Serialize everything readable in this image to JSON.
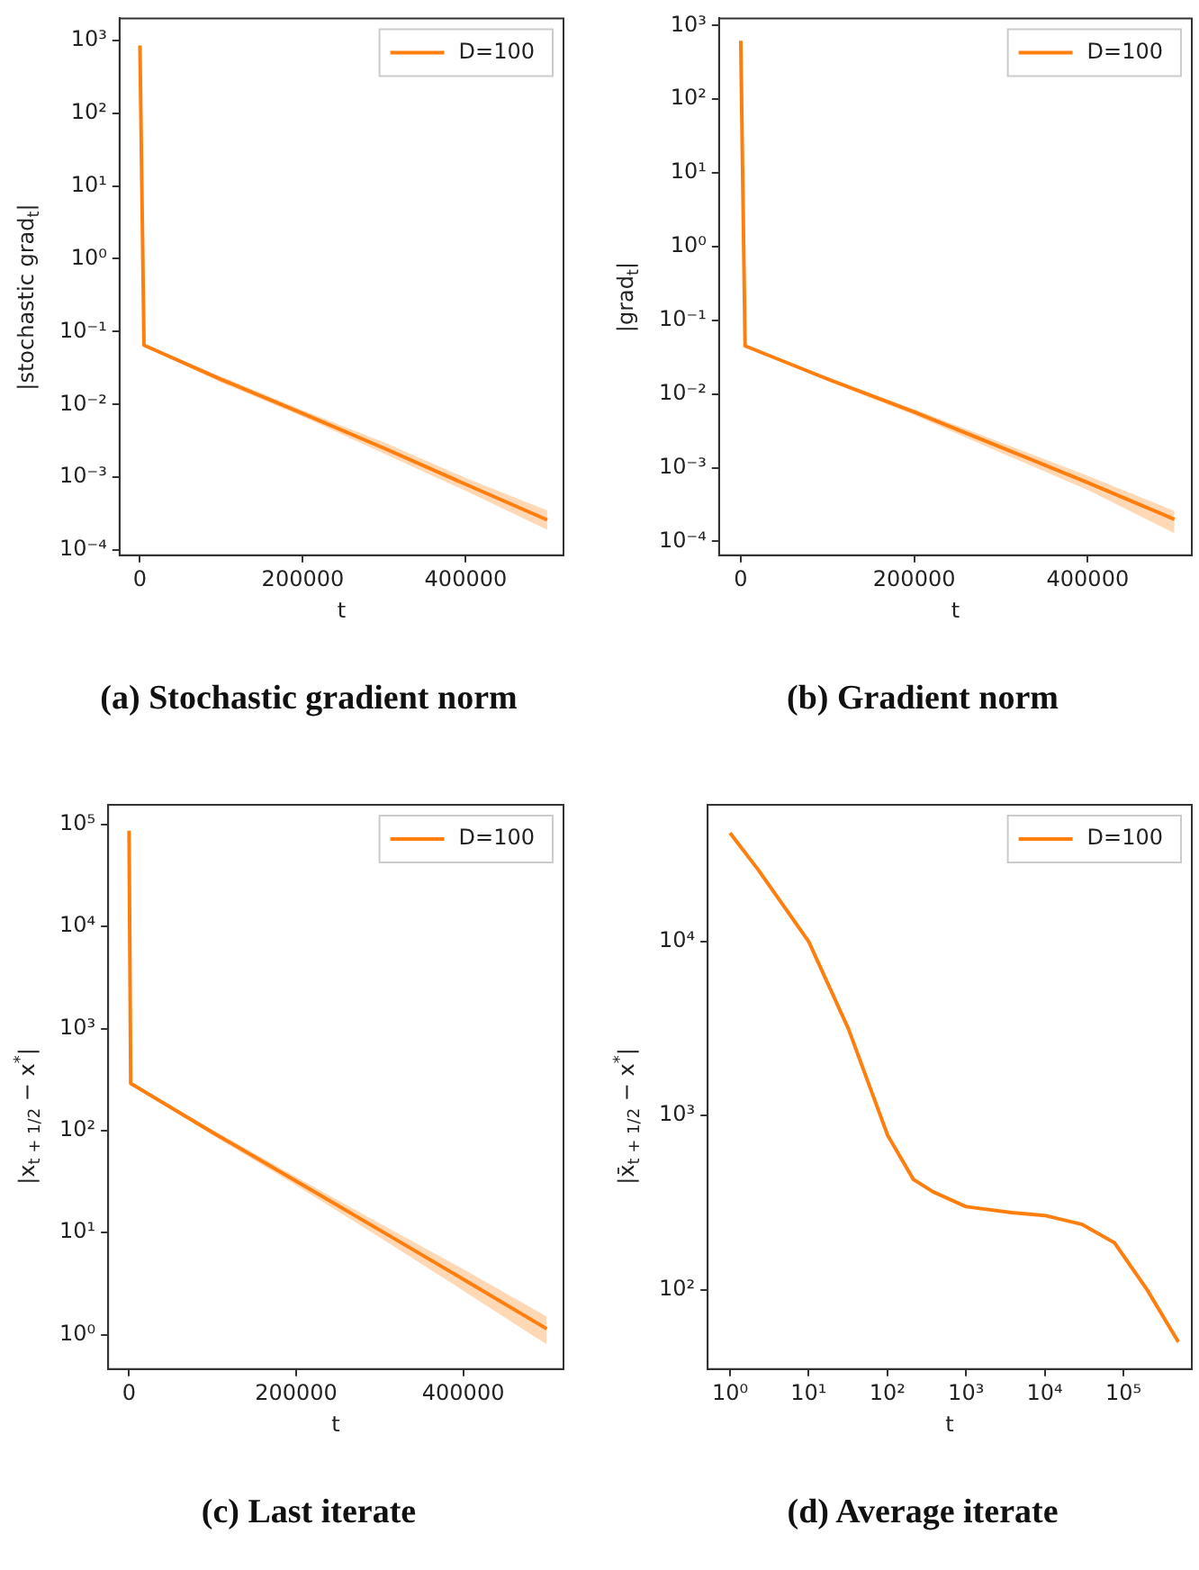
{
  "chart_data": [
    {
      "type": "line",
      "title": "(a) Stochastic gradient norm",
      "xlabel": "t",
      "ylabel": "|stochastic grad$_{t}$|",
      "log": "y",
      "legend": "top right",
      "grid": false,
      "xlim": [
        -25000,
        520000
      ],
      "xticks": [
        0,
        200000,
        400000
      ],
      "ylim": [
        8.5e-05,
        2000
      ],
      "yticks": [
        {
          "value": 0.0001,
          "label": "10⁻⁴"
        },
        {
          "value": 0.001,
          "label": "10⁻³"
        },
        {
          "value": 0.01,
          "label": "10⁻²"
        },
        {
          "value": 0.1,
          "label": "10⁻¹"
        },
        {
          "value": 1,
          "label": "10⁰"
        },
        {
          "value": 10,
          "label": "10¹"
        },
        {
          "value": 100,
          "label": "10²"
        },
        {
          "value": 1000,
          "label": "10³"
        }
      ],
      "series": [
        {
          "name": "D=100",
          "color": "#ff7f0e",
          "x": [
            0,
            5000,
            100000,
            200000,
            300000,
            400000,
            500000
          ],
          "values": [
            850,
            0.065,
            0.022,
            0.0075,
            0.0025,
            0.0008,
            0.00026
          ],
          "lower": [
            850,
            0.063,
            0.02,
            0.0068,
            0.0021,
            0.00065,
            0.00019
          ],
          "upper": [
            850,
            0.068,
            0.024,
            0.0083,
            0.003,
            0.00098,
            0.00035
          ]
        }
      ]
    },
    {
      "type": "line",
      "title": "(b) Gradient norm",
      "xlabel": "t",
      "ylabel": "|grad$_{t}$|",
      "log": "y",
      "legend": "top right",
      "grid": false,
      "xlim": [
        -25000,
        520000
      ],
      "xticks": [
        0,
        200000,
        400000
      ],
      "ylim": [
        6.5e-05,
        1250
      ],
      "yticks": [
        {
          "value": 0.0001,
          "label": "10⁻⁴"
        },
        {
          "value": 0.001,
          "label": "10⁻³"
        },
        {
          "value": 0.01,
          "label": "10⁻²"
        },
        {
          "value": 0.1,
          "label": "10⁻¹"
        },
        {
          "value": 1,
          "label": "10⁰"
        },
        {
          "value": 10,
          "label": "10¹"
        },
        {
          "value": 100,
          "label": "10²"
        },
        {
          "value": 1000,
          "label": "10³"
        }
      ],
      "series": [
        {
          "name": "D=100",
          "color": "#ff7f0e",
          "x": [
            0,
            5000,
            100000,
            200000,
            300000,
            400000,
            500000
          ],
          "values": [
            620,
            0.045,
            0.016,
            0.0057,
            0.0019,
            0.00063,
            0.0002
          ],
          "lower": [
            620,
            0.044,
            0.015,
            0.0052,
            0.0016,
            0.0005,
            0.00013
          ],
          "upper": [
            620,
            0.046,
            0.017,
            0.0062,
            0.0022,
            0.00078,
            0.00026
          ]
        }
      ]
    },
    {
      "type": "line",
      "title": "(c) Last iterate",
      "xlabel": "t",
      "ylabel": "|x$_{t + 1/2}$ − x$^{*}$|",
      "log": "y",
      "legend": "top right",
      "grid": false,
      "xlim": [
        -25000,
        520000
      ],
      "xticks": [
        0,
        200000,
        400000
      ],
      "ylim": [
        0.46,
        156000
      ],
      "yticks": [
        {
          "value": 1,
          "label": "10⁰"
        },
        {
          "value": 10,
          "label": "10¹"
        },
        {
          "value": 100,
          "label": "10²"
        },
        {
          "value": 1000,
          "label": "10³"
        },
        {
          "value": 10000,
          "label": "10⁴"
        },
        {
          "value": 100000,
          "label": "10⁵"
        }
      ],
      "series": [
        {
          "name": "D=100",
          "color": "#ff7f0e",
          "x": [
            0,
            2000,
            100000,
            200000,
            300000,
            400000,
            500000
          ],
          "values": [
            87000,
            290,
            96,
            32,
            10.6,
            3.5,
            1.14
          ],
          "lower": [
            87000,
            285,
            90,
            29,
            9,
            2.7,
            0.8
          ],
          "upper": [
            87000,
            295,
            102,
            35,
            12.3,
            4.4,
            1.5
          ]
        }
      ]
    },
    {
      "type": "line",
      "title": "(d) Average iterate",
      "xlabel": "t",
      "ylabel": "|x̄$_{t + 1/2}$ − x$^{*}$|",
      "log": "xy",
      "legend": "top right",
      "grid": false,
      "xlim": [
        0.52,
        740000
      ],
      "xticks": [
        {
          "value": 1,
          "label": "10⁰"
        },
        {
          "value": 10,
          "label": "10¹"
        },
        {
          "value": 100,
          "label": "10²"
        },
        {
          "value": 1000,
          "label": "10³"
        },
        {
          "value": 10000,
          "label": "10⁴"
        },
        {
          "value": 100000,
          "label": "10⁵"
        }
      ],
      "ylim": [
        35,
        61000
      ],
      "yticks": [
        {
          "value": 100,
          "label": "10²"
        },
        {
          "value": 1000,
          "label": "10³"
        },
        {
          "value": 10000,
          "label": "10⁴"
        }
      ],
      "series": [
        {
          "name": "D=100",
          "color": "#ff7f0e",
          "x": [
            1,
            2.26,
            10,
            32,
            101,
            214,
            380,
            1000,
            3800,
            10000,
            30000,
            77000,
            200000,
            500000
          ],
          "values": [
            42000,
            26000,
            10000,
            3150,
            770,
            430,
            365,
            300,
            277,
            267,
            237,
            186,
            100,
            50
          ]
        }
      ]
    }
  ]
}
